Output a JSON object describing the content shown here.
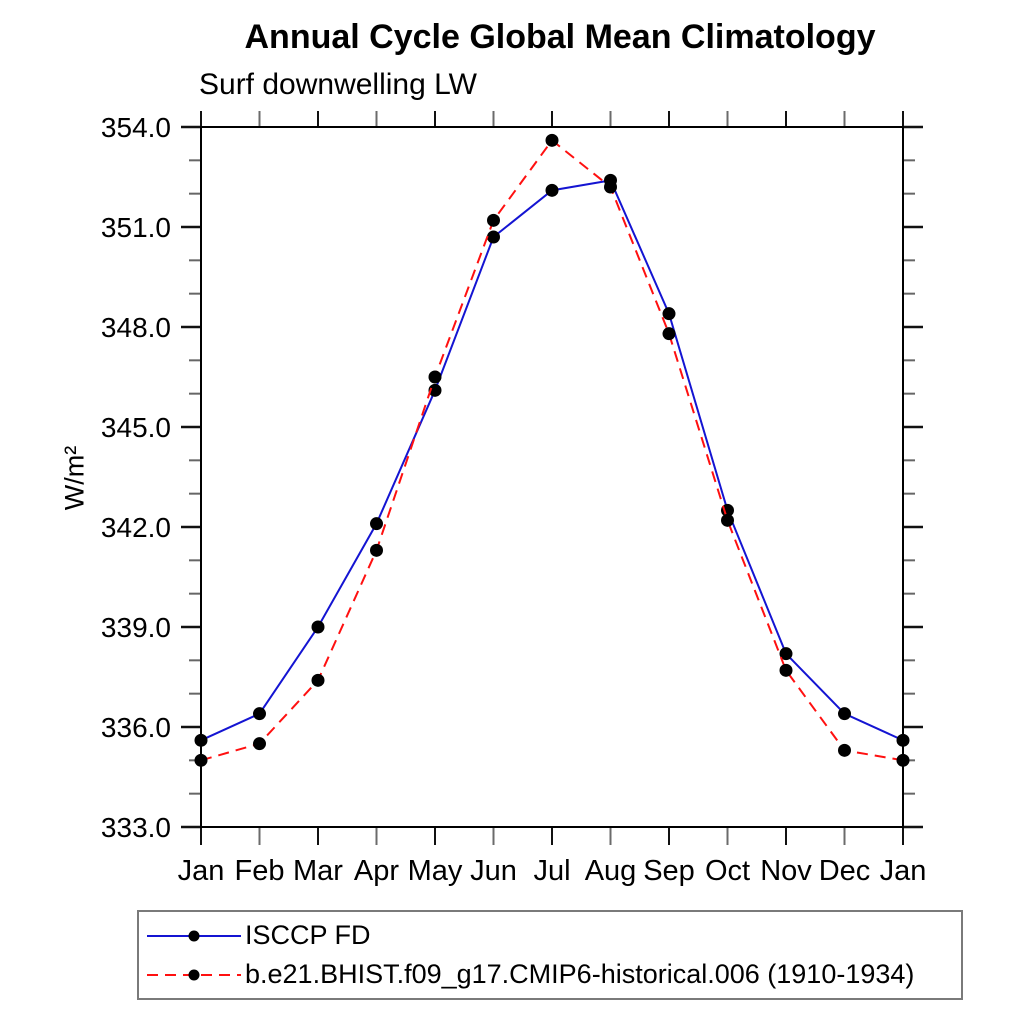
{
  "page": {
    "title": "Annual Cycle Global Mean Climatology",
    "subtitle": "Surf downwelling LW"
  },
  "chart_data": {
    "type": "line",
    "title": "Annual Cycle Global Mean Climatology",
    "subtitle": "Surf downwelling LW",
    "xlabel": "",
    "ylabel": "W/m²",
    "x_labels": [
      "Jan",
      "Feb",
      "Mar",
      "Apr",
      "May",
      "Jun",
      "Jul",
      "Aug",
      "Sep",
      "Oct",
      "Nov",
      "Dec",
      "Jan"
    ],
    "ylim": [
      333.0,
      354.0
    ],
    "y_major_step": 3.0,
    "y_minor_step": 1.0,
    "y_tick_labels": [
      "333.0",
      "336.0",
      "339.0",
      "342.0",
      "345.0",
      "348.0",
      "351.0",
      "354.0"
    ],
    "grid": false,
    "legend_position": "bottom-left",
    "frame_color": "#000000",
    "marker_color": "#000000",
    "series": [
      {
        "name": "ISCCP FD",
        "color": "#1414d2",
        "style": "solid",
        "marker": "circle",
        "values": [
          335.6,
          336.4,
          339.0,
          342.1,
          346.1,
          350.7,
          352.1,
          352.4,
          348.4,
          342.5,
          338.2,
          336.4,
          335.6
        ]
      },
      {
        "name": "b.e21.BHIST.f09_g17.CMIP6-historical.006 (1910-1934)",
        "color": "#ff1010",
        "style": "dashed",
        "marker": "circle",
        "values": [
          335.0,
          335.5,
          337.4,
          341.3,
          346.5,
          351.2,
          353.6,
          352.2,
          347.8,
          342.2,
          337.7,
          335.3,
          335.0
        ]
      }
    ]
  }
}
